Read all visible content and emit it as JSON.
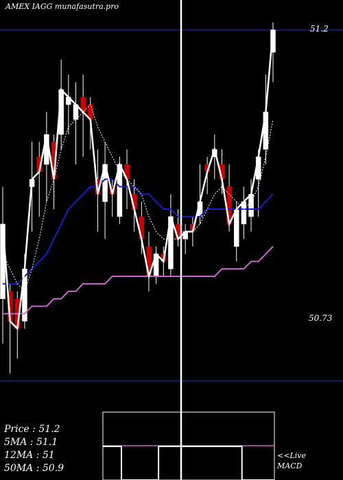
{
  "title": "AMEX IAGG munafasutra.pro",
  "levels": {
    "top": "51.2",
    "bottom": "50.73"
  },
  "legend": {
    "price": "Price : 51.2",
    "ma5": "5MA : 51.1",
    "ma12": "12MA : 51",
    "ma50": "50MA : 50.9"
  },
  "macd_label_1": "<<Live",
  "macd_label_2": "MACD",
  "colors": {
    "up": "#ffffff",
    "down": "#cc0000",
    "level_line": "#1a1a66",
    "ma_blue": "#1a1acc",
    "ma_magenta": "#cc66cc",
    "macd_magenta": "#cc66cc"
  },
  "chart_data": {
    "type": "candlestick",
    "ylim": [
      50.68,
      51.24
    ],
    "candles": [
      {
        "o": 50.84,
        "c": 50.94,
        "h": 50.99,
        "l": 50.78
      },
      {
        "o": 50.85,
        "c": 50.81,
        "h": 50.86,
        "l": 50.74
      },
      {
        "o": 50.84,
        "c": 50.8,
        "h": 50.85,
        "l": 50.76
      },
      {
        "o": 50.81,
        "c": 50.88,
        "h": 50.9,
        "l": 50.8
      },
      {
        "o": 50.99,
        "c": 51.0,
        "h": 51.05,
        "l": 50.93
      },
      {
        "o": 51.03,
        "c": 51.01,
        "h": 51.05,
        "l": 50.95
      },
      {
        "o": 51.02,
        "c": 51.06,
        "h": 51.09,
        "l": 50.97
      },
      {
        "o": 51.05,
        "c": 51.0,
        "h": 51.06,
        "l": 50.96
      },
      {
        "o": 51.06,
        "c": 51.12,
        "h": 51.16,
        "l": 51.04
      },
      {
        "o": 51.1,
        "c": 51.11,
        "h": 51.14,
        "l": 51.06
      },
      {
        "o": 51.08,
        "c": 51.1,
        "h": 51.13,
        "l": 51.02
      },
      {
        "o": 51.11,
        "c": 51.09,
        "h": 51.14,
        "l": 51.03
      },
      {
        "o": 51.1,
        "c": 51.08,
        "h": 51.11,
        "l": 51.04
      },
      {
        "o": 51.0,
        "c": 50.98,
        "h": 51.04,
        "l": 50.93
      },
      {
        "o": 50.97,
        "c": 51.02,
        "h": 51.05,
        "l": 50.92
      },
      {
        "o": 50.99,
        "c": 50.98,
        "h": 51.0,
        "l": 50.95
      },
      {
        "o": 50.95,
        "c": 51.02,
        "h": 51.03,
        "l": 50.94
      },
      {
        "o": 51.02,
        "c": 51.0,
        "h": 51.04,
        "l": 50.96
      },
      {
        "o": 50.98,
        "c": 50.96,
        "h": 51.0,
        "l": 50.93
      },
      {
        "o": 50.95,
        "c": 50.92,
        "h": 50.97,
        "l": 50.9
      },
      {
        "o": 50.91,
        "c": 50.87,
        "h": 50.93,
        "l": 50.85
      },
      {
        "o": 50.87,
        "c": 50.9,
        "h": 50.91,
        "l": 50.86
      },
      {
        "o": 50.9,
        "c": 50.89,
        "h": 50.91,
        "l": 50.87
      },
      {
        "o": 50.88,
        "c": 50.95,
        "h": 50.98,
        "l": 50.87
      },
      {
        "o": 50.94,
        "c": 50.92,
        "h": 50.96,
        "l": 50.91
      },
      {
        "o": 50.92,
        "c": 50.93,
        "h": 50.94,
        "l": 50.9
      },
      {
        "o": 50.94,
        "c": 50.93,
        "h": 50.95,
        "l": 50.91
      },
      {
        "o": 50.95,
        "c": 50.97,
        "h": 51.02,
        "l": 50.94
      },
      {
        "o": 51.02,
        "c": 51.01,
        "h": 51.03,
        "l": 50.98
      },
      {
        "o": 51.03,
        "c": 51.04,
        "h": 51.06,
        "l": 51.0
      },
      {
        "o": 51.02,
        "c": 51.0,
        "h": 51.04,
        "l": 50.98
      },
      {
        "o": 50.99,
        "c": 50.94,
        "h": 51.02,
        "l": 50.93
      },
      {
        "o": 50.91,
        "c": 50.96,
        "h": 50.97,
        "l": 50.89
      },
      {
        "o": 50.94,
        "c": 50.97,
        "h": 50.99,
        "l": 50.92
      },
      {
        "o": 50.95,
        "c": 50.98,
        "h": 51.0,
        "l": 50.93
      },
      {
        "o": 51.0,
        "c": 51.03,
        "h": 51.04,
        "l": 50.95
      },
      {
        "o": 51.04,
        "c": 51.09,
        "h": 51.14,
        "l": 51.02
      },
      {
        "o": 51.17,
        "c": 51.2,
        "h": 51.21,
        "l": 51.13
      }
    ],
    "ma_fast": [
      50.9,
      50.88,
      50.86,
      50.85,
      50.88,
      50.92,
      50.97,
      51.0,
      51.04,
      51.07,
      51.08,
      51.09,
      51.1,
      51.07,
      51.05,
      51.03,
      51.01,
      51.0,
      50.99,
      50.98,
      50.95,
      50.93,
      50.92,
      50.92,
      50.92,
      50.93,
      50.93,
      50.94,
      50.96,
      50.98,
      50.99,
      50.98,
      50.97,
      50.96,
      50.97,
      50.99,
      51.03,
      51.08
    ],
    "ma_blue": [
      50.86,
      50.86,
      50.86,
      50.87,
      50.88,
      50.89,
      50.9,
      50.92,
      50.94,
      50.96,
      50.97,
      50.98,
      50.99,
      50.99,
      51.0,
      51.0,
      50.99,
      50.99,
      50.99,
      50.98,
      50.98,
      50.97,
      50.96,
      50.96,
      50.95,
      50.95,
      50.95,
      50.95,
      50.96,
      50.96,
      50.96,
      50.96,
      50.96,
      50.96,
      50.96,
      50.96,
      50.97,
      50.98
    ],
    "ma_slow": [
      50.82,
      50.82,
      50.82,
      50.82,
      50.83,
      50.83,
      50.83,
      50.84,
      50.84,
      50.85,
      50.85,
      50.86,
      50.86,
      50.86,
      50.86,
      50.87,
      50.87,
      50.87,
      50.87,
      50.87,
      50.87,
      50.87,
      50.87,
      50.87,
      50.87,
      50.87,
      50.87,
      50.87,
      50.87,
      50.87,
      50.88,
      50.88,
      50.88,
      50.88,
      50.89,
      50.89,
      50.9,
      50.91
    ],
    "macd_signal": [
      1,
      1,
      1,
      1,
      0,
      0,
      0,
      0,
      0,
      0,
      0,
      0,
      1,
      1,
      1,
      1,
      1,
      1,
      1,
      1,
      1,
      1,
      1,
      1,
      1,
      1,
      1,
      1,
      1,
      1,
      0,
      0,
      0,
      0,
      0,
      0,
      0,
      0
    ]
  }
}
